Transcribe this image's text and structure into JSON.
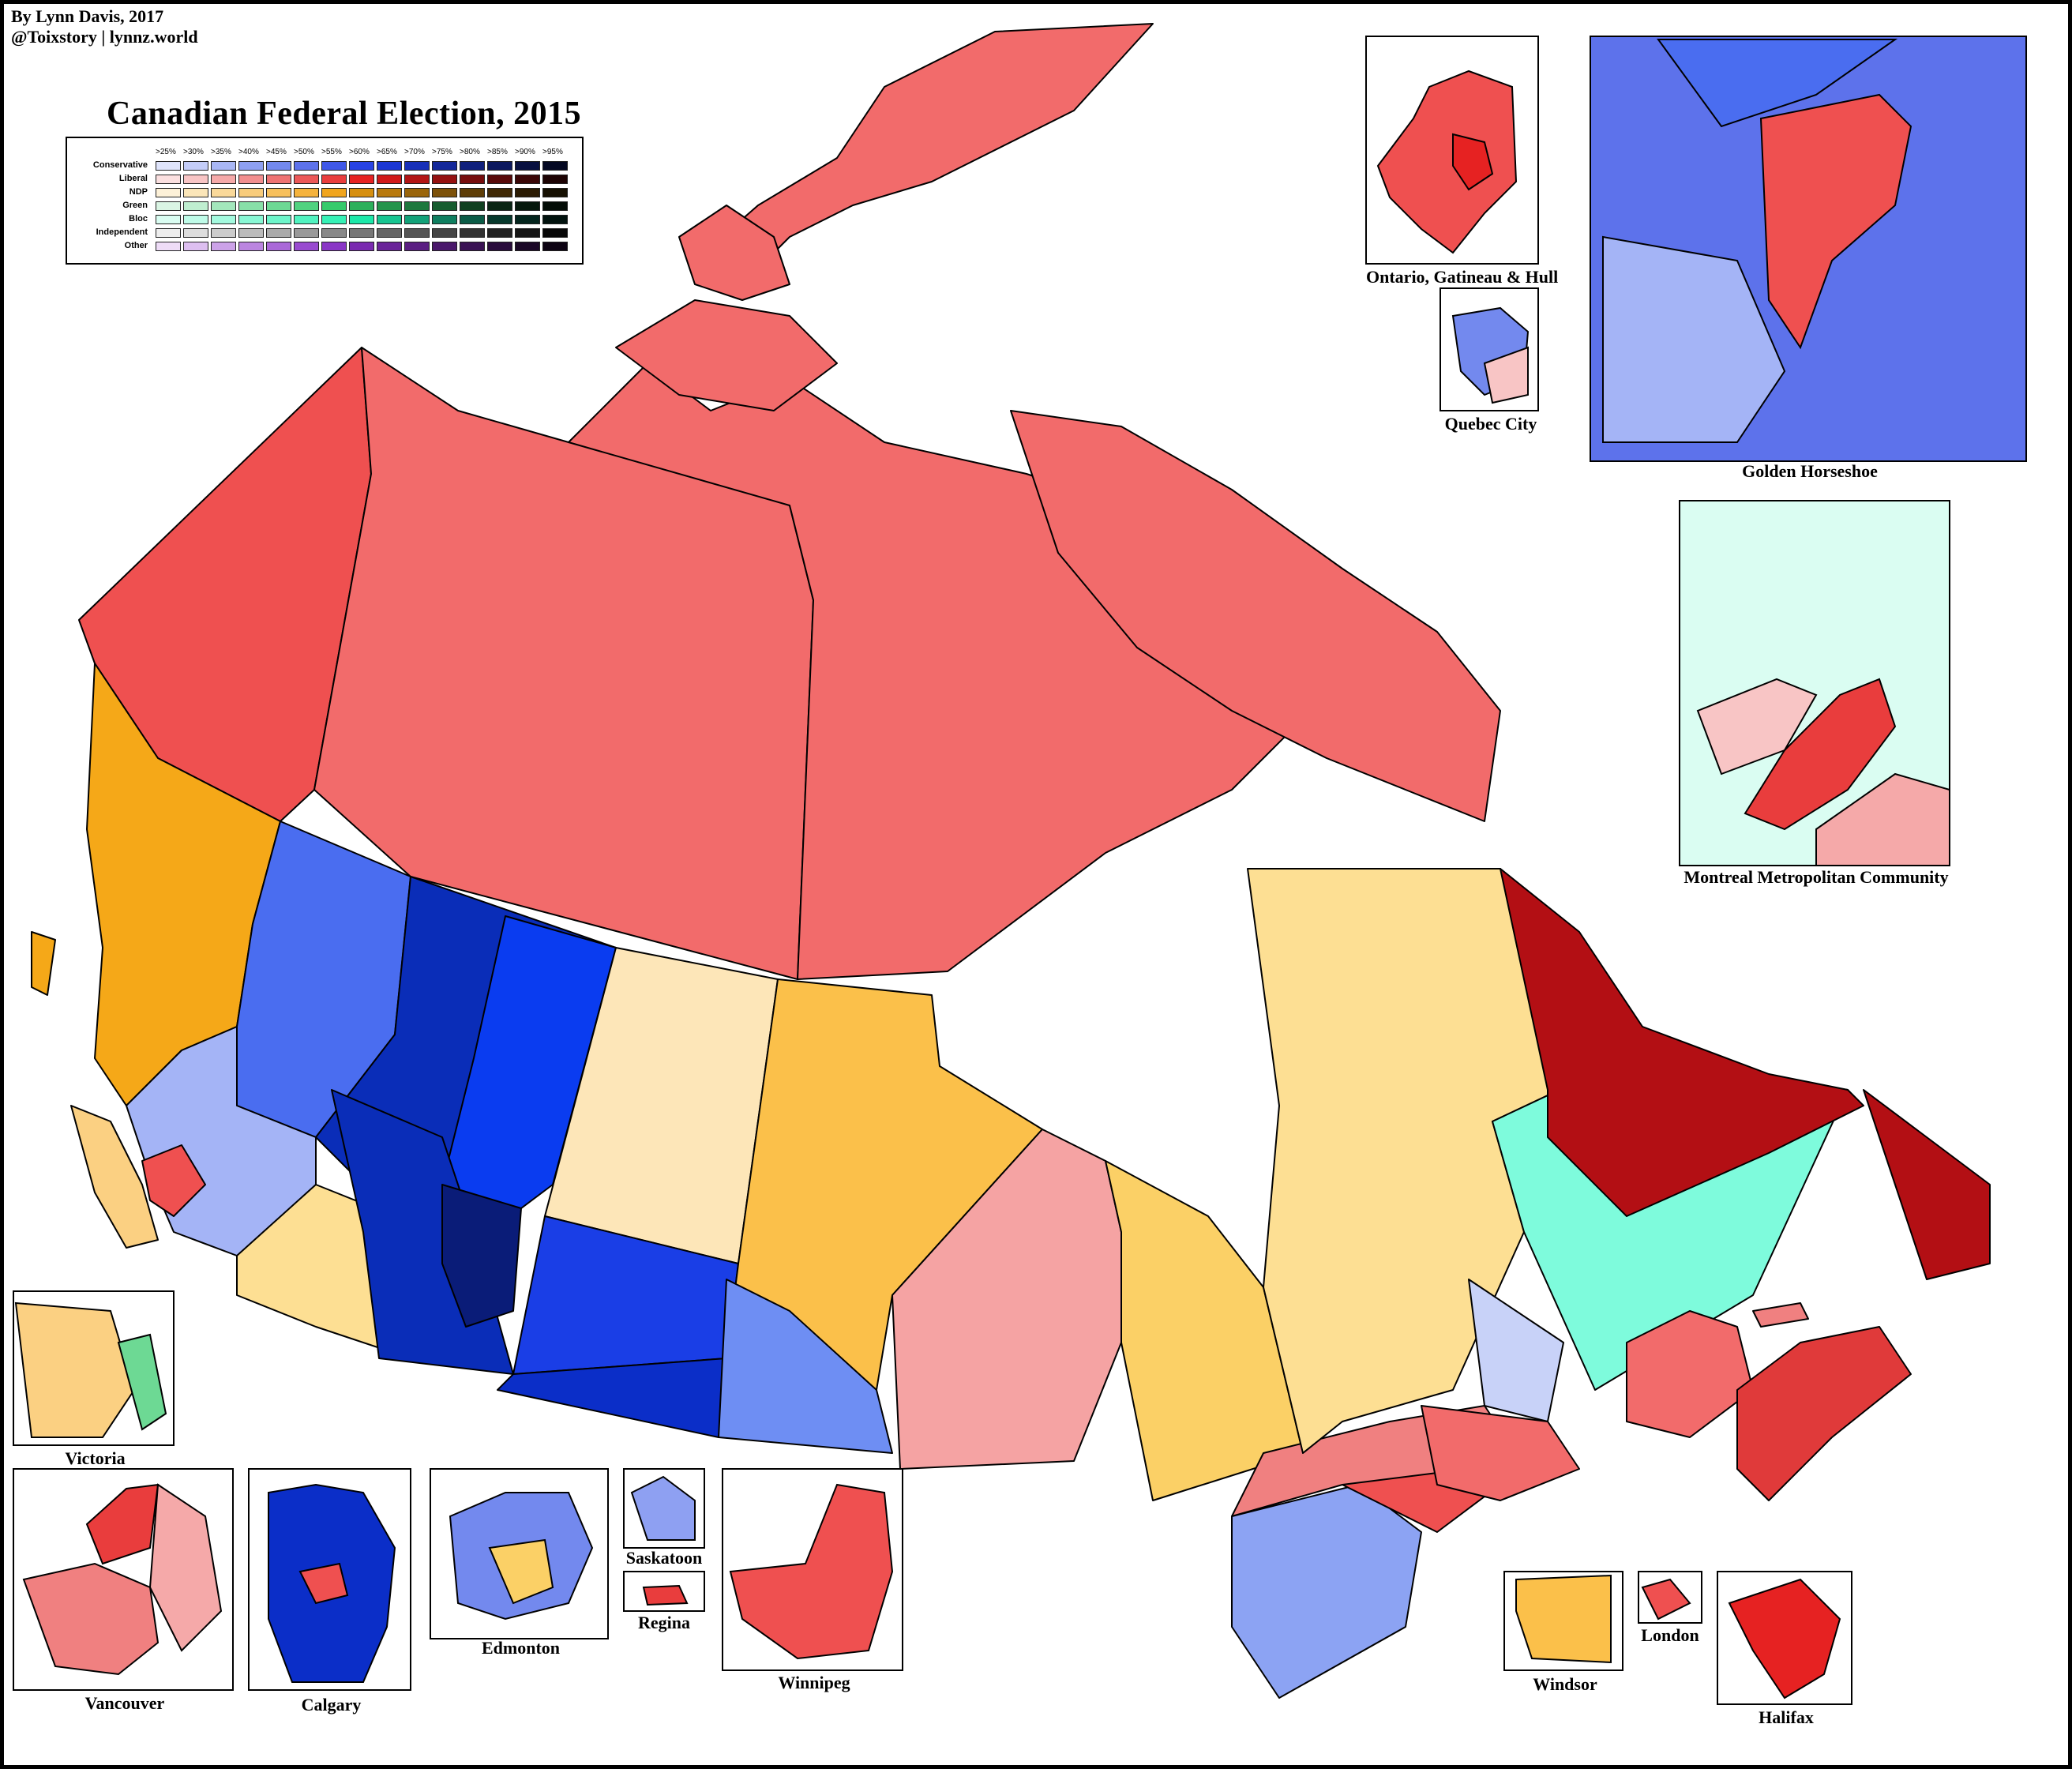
{
  "credit": {
    "line1": "By Lynn Davis, 2017",
    "line2": "@Toixstory  |  lynnz.world"
  },
  "title": "Canadian Federal Election, 2015",
  "legend": {
    "thresholds": [
      ">25%",
      ">30%",
      ">35%",
      ">40%",
      ">45%",
      ">50%",
      ">55%",
      ">60%",
      ">65%",
      ">70%",
      ">75%",
      ">80%",
      ">85%",
      ">90%",
      ">95%"
    ],
    "parties": [
      {
        "name": "Conservative",
        "colors": [
          "#dfe4fb",
          "#c4cdf8",
          "#a9b7f5",
          "#8ea0f2",
          "#7389ee",
          "#5d72eb",
          "#4058e8",
          "#2742e4",
          "#1c37d4",
          "#1830b8",
          "#14289a",
          "#10207c",
          "#0c185e",
          "#081040",
          "#040822"
        ]
      },
      {
        "name": "Liberal",
        "colors": [
          "#fbe0e0",
          "#f8c5c5",
          "#f5a9a9",
          "#f28e8e",
          "#ef7373",
          "#ec5858",
          "#e93d3d",
          "#e62222",
          "#d11919",
          "#b31515",
          "#951111",
          "#770e0e",
          "#590a0a",
          "#3b0707",
          "#1d0303"
        ]
      },
      {
        "name": "NDP",
        "colors": [
          "#fdf1d8",
          "#fbe6b9",
          "#fad99a",
          "#f8cc7b",
          "#f7c05c",
          "#f5b33d",
          "#f0a51e",
          "#d68f0f",
          "#b8790d",
          "#9a650b",
          "#7c5109",
          "#5e3d07",
          "#402905",
          "#2b1b03",
          "#161002"
        ]
      },
      {
        "name": "Green",
        "colors": [
          "#daf5e4",
          "#bfeed0",
          "#a3e7bc",
          "#88e0a8",
          "#6dd994",
          "#51d280",
          "#36cb6c",
          "#2cb05b",
          "#25944c",
          "#1e783e",
          "#175c2f",
          "#104020",
          "#0a2514",
          "#06180c",
          "#030c06"
        ]
      },
      {
        "name": "Bloc",
        "colors": [
          "#dafdf2",
          "#bffbe8",
          "#a3f9de",
          "#88f7d4",
          "#6df5ca",
          "#51f3c0",
          "#36f1b6",
          "#1ce8a9",
          "#17c591",
          "#13a279",
          "#0f7f60",
          "#0b5c47",
          "#07392d",
          "#04261e",
          "#02130f"
        ]
      },
      {
        "name": "Independent",
        "colors": [
          "#eeeeee",
          "#dddddd",
          "#cccccc",
          "#bbbbbb",
          "#aaaaaa",
          "#999999",
          "#888888",
          "#777777",
          "#666666",
          "#555555",
          "#444444",
          "#333333",
          "#222222",
          "#151515",
          "#080808"
        ]
      },
      {
        "name": "Other",
        "colors": [
          "#eedcf7",
          "#ddbff0",
          "#cca2e8",
          "#bb85e0",
          "#aa68d8",
          "#994bd0",
          "#8a36c6",
          "#7a2ab0",
          "#6a2499",
          "#5a1e82",
          "#4a186b",
          "#3a1254",
          "#2a0c3d",
          "#1a0726",
          "#0d0313"
        ]
      }
    ]
  },
  "insets": {
    "ottawa": "Ontario, Gatineau & Hull",
    "quebec_city": "Quebec City",
    "golden_horseshoe": "Golden Horseshoe",
    "montreal": "Montreal Metropolitan Community",
    "victoria": "Victoria",
    "vancouver": "Vancouver",
    "calgary": "Calgary",
    "edmonton": "Edmonton",
    "saskatoon": "Saskatoon",
    "regina": "Regina",
    "winnipeg": "Winnipeg",
    "windsor": "Windsor",
    "london": "London",
    "halifax": "Halifax"
  },
  "colors": {
    "territories_liberal": "#f26b6b",
    "yukon_liberal": "#ef5050",
    "bc_ndp": "#f5a818",
    "conservative_mid": "#4a6df0",
    "conservative_light": "#a4b4f6",
    "alberta_dark": "#0a2db8",
    "alberta_darkest": "#0a1c78",
    "sask_ndp_light": "#fde6b8",
    "manitoba_ndp": "#fbc04a",
    "ontario_liberal_light": "#f5a3a3",
    "quebec_ndp": "#fddf93",
    "labrador_liberal": "#b30f14",
    "bloc": "#7efbdc",
    "maritimes_liberal": "#e03a3a"
  }
}
